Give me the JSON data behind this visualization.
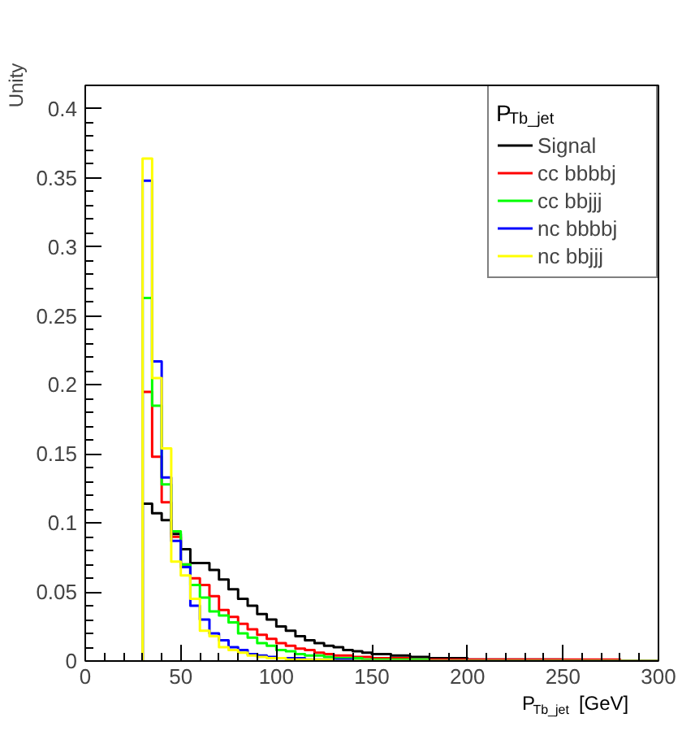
{
  "chart_data": {
    "type": "histogram",
    "xlabel": "P$_{Tb_jet}$[GeV]",
    "ylabel": "Unity",
    "legend_title": "P$_{Tb_jet}$",
    "bins": [
      30,
      35,
      40,
      45,
      50,
      55,
      60,
      65,
      70,
      75,
      80,
      85,
      90,
      95,
      100,
      105,
      110,
      115,
      120,
      125,
      130,
      135,
      140,
      145,
      150,
      155,
      160,
      165,
      170,
      175,
      180,
      185,
      190,
      195,
      200,
      205,
      210,
      215,
      220,
      225,
      230,
      235,
      240,
      245,
      250,
      255,
      260,
      265,
      270,
      275,
      280,
      285,
      290,
      295,
      300
    ],
    "series": [
      {
        "name": "Signal",
        "color": "#000000",
        "values": [
          0.114,
          0.107,
          0.102,
          0.092,
          0.081,
          0.071,
          0.071,
          0.066,
          0.059,
          0.052,
          0.045,
          0.04,
          0.034,
          0.03,
          0.025,
          0.022,
          0.018,
          0.015,
          0.013,
          0.011,
          0.01,
          0.008,
          0.007,
          0.006,
          0.005,
          0.005,
          0.004,
          0.004,
          0.003,
          0.003,
          0.002,
          0.002,
          0.002,
          0.002,
          0.001,
          0.001,
          0.001,
          0.001,
          0.001,
          0.001,
          0.001,
          0.001,
          0.001,
          0.001,
          0,
          0,
          0,
          0,
          0,
          0,
          0,
          0,
          0,
          0
        ]
      },
      {
        "name": "cc bbbbj",
        "color": "#ff0000",
        "values": [
          0.195,
          0.148,
          0.115,
          0.09,
          0.07,
          0.06,
          0.055,
          0.047,
          0.037,
          0.032,
          0.027,
          0.023,
          0.019,
          0.016,
          0.013,
          0.011,
          0.009,
          0.008,
          0.006,
          0.005,
          0.004,
          0.004,
          0.003,
          0.003,
          0.002,
          0.002,
          0.002,
          0.002,
          0.001,
          0.001,
          0.001,
          0.001,
          0.001,
          0.001,
          0.001,
          0.001,
          0.001,
          0.001,
          0.001,
          0.001,
          0.001,
          0.001,
          0.001,
          0.001,
          0.001,
          0.001,
          0.001,
          0.001,
          0.001,
          0.001,
          0,
          0,
          0,
          0
        ]
      },
      {
        "name": "cc bbjjj",
        "color": "#00ff00",
        "values": [
          0.263,
          0.185,
          0.128,
          0.094,
          0.07,
          0.055,
          0.046,
          0.036,
          0.033,
          0.028,
          0.02,
          0.017,
          0.013,
          0.011,
          0.008,
          0.007,
          0.005,
          0.004,
          0.004,
          0.003,
          0.002,
          0.002,
          0.002,
          0.001,
          0.001,
          0.001,
          0.001,
          0.001,
          0.001,
          0.001,
          0,
          0,
          0,
          0,
          0,
          0,
          0,
          0,
          0,
          0,
          0,
          0,
          0,
          0,
          0,
          0,
          0,
          0,
          0,
          0,
          0,
          0,
          0,
          0
        ]
      },
      {
        "name": "nc bbbbj",
        "color": "#0000ff",
        "values": [
          0.348,
          0.217,
          0.133,
          0.087,
          0.068,
          0.04,
          0.03,
          0.02,
          0.015,
          0.01,
          0.008,
          0.005,
          0.004,
          0.003,
          0.002,
          0.002,
          0.002,
          0.001,
          0.001,
          0.001,
          0.001,
          0.001,
          0,
          0,
          0,
          0,
          0,
          0,
          0,
          0,
          0,
          0,
          0,
          0,
          0,
          0,
          0,
          0,
          0,
          0,
          0,
          0,
          0,
          0,
          0,
          0,
          0,
          0,
          0,
          0,
          0,
          0,
          0,
          0
        ]
      },
      {
        "name": "nc bbjjj",
        "color": "#ffff00",
        "values": [
          0.364,
          0.205,
          0.154,
          0.072,
          0.062,
          0.045,
          0.022,
          0.018,
          0.01,
          0.008,
          0.006,
          0.004,
          0.003,
          0.002,
          0.002,
          0.001,
          0.001,
          0.001,
          0.001,
          0.001,
          0,
          0,
          0,
          0,
          0,
          0,
          0,
          0,
          0,
          0,
          0,
          0,
          0,
          0,
          0,
          0,
          0,
          0,
          0,
          0,
          0,
          0,
          0,
          0,
          0,
          0,
          0,
          0,
          0,
          0,
          0,
          0,
          0,
          0
        ]
      }
    ],
    "xlim": [
      0,
      300
    ],
    "xticks": [
      0,
      50,
      100,
      150,
      200,
      250,
      300
    ],
    "ylim": [
      0,
      0.417
    ],
    "yticks": [
      0,
      0.05,
      0.1,
      0.15,
      0.2,
      0.25,
      0.3,
      0.35,
      0.4
    ],
    "grid": false,
    "legend": "top right"
  }
}
